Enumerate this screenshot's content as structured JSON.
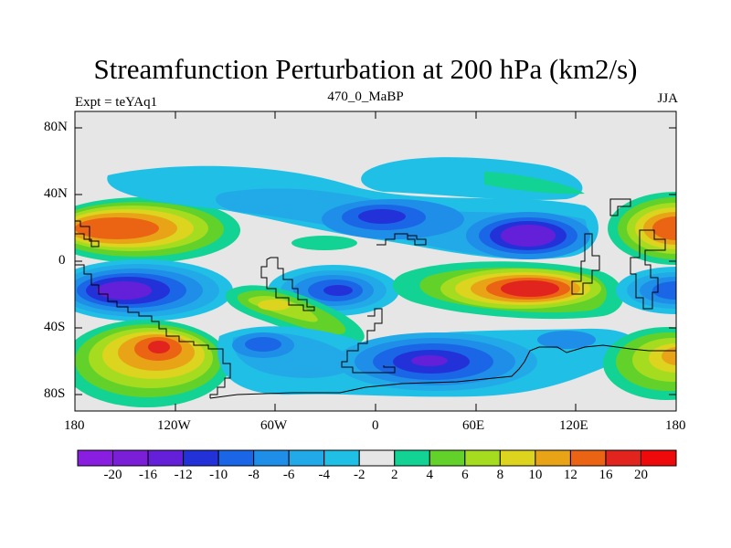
{
  "title": "Streamfunction Perturbation at 200 hPa (km2/s)",
  "subtitle_left": "Expt = teYAq1",
  "subtitle_center": "470_0_MaBP",
  "subtitle_right": "JJA",
  "y_axis_labels": [
    "80N",
    "40N",
    "0",
    "40S",
    "80S"
  ],
  "x_axis_labels": [
    "180",
    "120W",
    "60W",
    "0",
    "60E",
    "120E",
    "180"
  ],
  "colorbar": {
    "labels": [
      "-20",
      "-16",
      "-12",
      "-10",
      "-8",
      "-6",
      "-4",
      "-2",
      "2",
      "4",
      "6",
      "8",
      "10",
      "12",
      "16",
      "20"
    ],
    "colors": [
      "#8a1ee0",
      "#7a1ed8",
      "#6420d8",
      "#2232d8",
      "#1a66e6",
      "#1e8ee8",
      "#22aae8",
      "#20c0e6",
      "#e6e6e6",
      "#12d294",
      "#62d22a",
      "#a6dc20",
      "#dcd41e",
      "#e8a416",
      "#ea6414",
      "#e2241e",
      "#ee0a0a"
    ]
  },
  "colors": {
    "background": "#e6e6e6",
    "deep_negative": "#6420d8",
    "mid_negative": "#1e8ee8",
    "weak_negative": "#20c0e6",
    "weak_positive": "#12d294",
    "mid_positive": "#dcd41e",
    "strong_positive": "#e2241e"
  }
}
